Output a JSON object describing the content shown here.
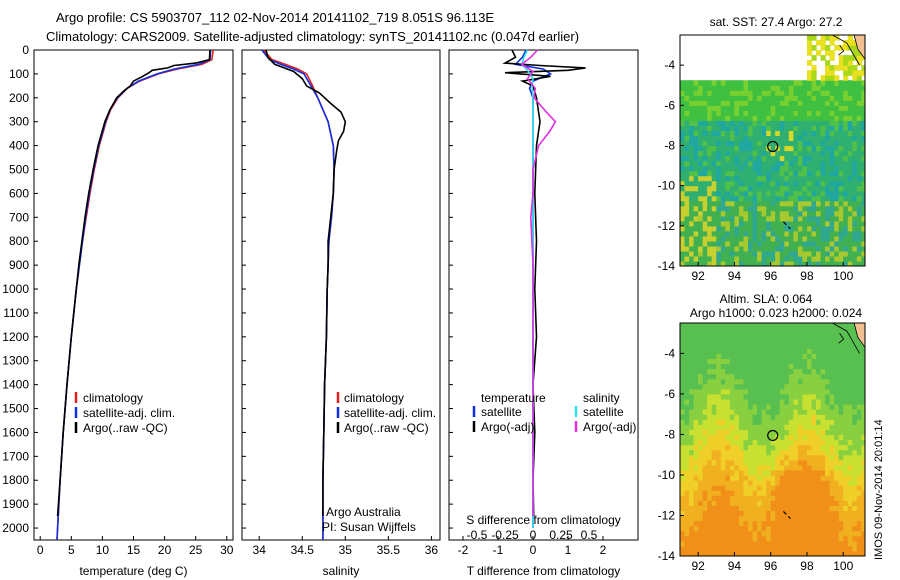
{
  "header": {
    "line1": "Argo profile: CS 5903707_112 02-Nov-2014 20141102_719 8.051S 96.113E",
    "line2": "Climatology: CARS2009. Satellite-adjusted climatology: synTS_20141102.nc (0.047d earlier)"
  },
  "depth_ticks": [
    "0",
    "100",
    "200",
    "300",
    "400",
    "500",
    "600",
    "700",
    "800",
    "900",
    "1000",
    "1100",
    "1200",
    "1300",
    "1400",
    "1500",
    "1600",
    "1700",
    "1800",
    "1900",
    "2000"
  ],
  "colors": {
    "clim": "#e02020",
    "sat": "#1030e0",
    "argo": "#000000",
    "sal_sat": "#30e0e8",
    "sal_argo": "#e030e0",
    "sst_bg": "#ffffff"
  },
  "chart_data": [
    {
      "id": "temperature",
      "type": "line",
      "xlabel": "temperature (deg C)",
      "xlim": [
        -1,
        31
      ],
      "xticks": [
        "0",
        "5",
        "10",
        "15",
        "20",
        "25",
        "30"
      ],
      "ylim": [
        0,
        2050
      ],
      "legend": [
        "climatology",
        "satellite-adj. clim.",
        "Argo(..raw -QC)"
      ],
      "series": [
        {
          "name": "climatology",
          "depth": [
            0,
            40,
            60,
            80,
            100,
            130,
            160,
            200,
            250,
            300,
            400,
            500,
            600,
            700,
            800,
            900,
            1000,
            1200,
            1400,
            1600,
            1800,
            2000,
            2050
          ],
          "values": [
            27.8,
            27.6,
            26.0,
            22.0,
            19.0,
            16.0,
            14.0,
            12.5,
            11.3,
            10.6,
            9.5,
            8.7,
            8.0,
            7.4,
            6.8,
            6.3,
            5.8,
            5.0,
            4.3,
            3.7,
            3.2,
            2.8,
            2.7
          ]
        },
        {
          "name": "satellite-adj. clim.",
          "depth": [
            0,
            40,
            60,
            80,
            100,
            130,
            160,
            200,
            250,
            300,
            400,
            500,
            600,
            700,
            800,
            900,
            1000,
            1200,
            1400,
            1600,
            1800,
            2000,
            2050
          ],
          "values": [
            27.4,
            27.3,
            25.5,
            21.5,
            18.8,
            15.8,
            14.0,
            12.4,
            11.2,
            10.5,
            9.4,
            8.6,
            7.9,
            7.3,
            6.8,
            6.3,
            5.8,
            5.0,
            4.3,
            3.7,
            3.2,
            2.8,
            2.7
          ]
        },
        {
          "name": "Argo(..raw -QC)",
          "depth": [
            0,
            40,
            55,
            65,
            75,
            85,
            95,
            110,
            130,
            150,
            170,
            200,
            250,
            300,
            400,
            500,
            600,
            700,
            800,
            900,
            1000,
            1200,
            1400,
            1600,
            1800,
            1950
          ],
          "values": [
            27.3,
            27.2,
            25.0,
            21.5,
            20.5,
            18.0,
            17.5,
            16.5,
            15.0,
            14.5,
            13.5,
            12.3,
            11.2,
            10.4,
            9.3,
            8.5,
            7.8,
            7.2,
            6.7,
            6.2,
            5.8,
            5.0,
            4.3,
            3.7,
            3.2,
            2.8
          ]
        }
      ]
    },
    {
      "id": "salinity",
      "type": "line",
      "xlabel": "salinity",
      "xlim": [
        33.8,
        36.1
      ],
      "xticks": [
        "34",
        "34.5",
        "35",
        "35.5",
        "36"
      ],
      "ylim": [
        0,
        2050
      ],
      "legend": [
        "climatology",
        "satellite-adj. clim.",
        "Argo(..raw -QC)"
      ],
      "annotation": [
        "Argo Australia",
        "PI: Susan Wijffels"
      ],
      "series": [
        {
          "name": "climatology",
          "depth": [
            0,
            40,
            60,
            80,
            100,
            150,
            200,
            300,
            400,
            500,
            600,
            700,
            800,
            900,
            1000,
            1200,
            1400,
            1600,
            1800,
            2000,
            2050
          ],
          "values": [
            34.05,
            34.15,
            34.3,
            34.45,
            34.55,
            34.62,
            34.68,
            34.8,
            34.86,
            34.87,
            34.86,
            34.84,
            34.81,
            34.8,
            34.79,
            34.78,
            34.76,
            34.75,
            34.74,
            34.74,
            34.74
          ]
        },
        {
          "name": "satellite-adj. clim.",
          "depth": [
            0,
            40,
            60,
            80,
            100,
            150,
            200,
            300,
            400,
            500,
            600,
            700,
            800,
            900,
            1000,
            1200,
            1400,
            1600,
            1800,
            2000,
            2050
          ],
          "values": [
            34.03,
            34.12,
            34.25,
            34.4,
            34.52,
            34.6,
            34.68,
            34.8,
            34.86,
            34.87,
            34.86,
            34.84,
            34.81,
            34.8,
            34.79,
            34.78,
            34.76,
            34.75,
            34.74,
            34.74,
            34.74
          ]
        },
        {
          "name": "Argo(..raw -QC)",
          "depth": [
            0,
            30,
            60,
            90,
            120,
            150,
            180,
            220,
            260,
            300,
            340,
            380,
            420,
            500,
            600,
            700,
            800,
            900,
            1000,
            1200,
            1400,
            1600,
            1800,
            1950
          ],
          "values": [
            34.08,
            34.1,
            34.18,
            34.4,
            34.5,
            34.55,
            34.7,
            34.82,
            34.95,
            35.0,
            34.98,
            34.92,
            34.9,
            34.87,
            34.86,
            34.83,
            34.8,
            34.8,
            34.79,
            34.78,
            34.76,
            34.75,
            34.74,
            34.74
          ]
        }
      ]
    },
    {
      "id": "differences",
      "type": "line",
      "xlabel_bottom": "T difference from climatology",
      "xlabel_top": "S difference from climatology",
      "xlim": [
        -2.4,
        3.0
      ],
      "xticks_bottom": [
        "-2",
        "-1",
        "0",
        "1",
        "2"
      ],
      "xticks_top": [
        "-0.5",
        "-0.25",
        "0",
        "0.25",
        "0.5"
      ],
      "ylim": [
        0,
        2050
      ],
      "legend_temperature": [
        "temperature",
        "satellite",
        "Argo(-adj)"
      ],
      "legend_salinity": [
        "salinity",
        "satellite",
        "Argo(-adj)"
      ],
      "series": [
        {
          "name": "T satellite",
          "depth": [
            0,
            30,
            60,
            80,
            100,
            130,
            160,
            200,
            300,
            500,
            800,
            1200,
            2000
          ],
          "values": [
            -0.2,
            -0.3,
            -0.5,
            0.3,
            0.5,
            0.0,
            -0.1,
            0.0,
            0.0,
            0.0,
            0.0,
            0.0,
            0.0
          ]
        },
        {
          "name": "T Argo(-adj)",
          "depth": [
            0,
            30,
            55,
            65,
            75,
            85,
            95,
            110,
            130,
            150,
            200,
            300,
            400,
            600,
            800,
            1000,
            1200,
            1400,
            1600,
            1800,
            1950
          ],
          "values": [
            -0.6,
            -0.5,
            -0.8,
            0.2,
            1.5,
            1.0,
            -0.8,
            0.5,
            -0.3,
            0.0,
            0.1,
            0.2,
            0.1,
            0.05,
            0.1,
            0.05,
            0.1,
            0.0,
            0.05,
            0.0,
            0.02
          ]
        },
        {
          "name": "S satellite",
          "depth": [
            0,
            30,
            60,
            90,
            120,
            150,
            200,
            400,
            800,
            1200,
            2000
          ],
          "values": [
            -0.05,
            -0.08,
            -0.1,
            -0.04,
            0.0,
            -0.01,
            0.0,
            0.0,
            0.0,
            0.0,
            0.0
          ]
        },
        {
          "name": "S Argo(-adj)",
          "depth": [
            0,
            30,
            60,
            90,
            120,
            160,
            200,
            260,
            300,
            340,
            400,
            500,
            600,
            700,
            800,
            900,
            1000,
            1200,
            1500,
            1800,
            1950
          ],
          "values": [
            0.04,
            -0.02,
            -0.1,
            0.0,
            -0.05,
            0.02,
            0.01,
            0.12,
            0.2,
            0.15,
            0.05,
            0.0,
            0.0,
            -0.02,
            -0.01,
            0.0,
            0.0,
            0.0,
            0.0,
            0.0,
            0.0
          ]
        }
      ]
    },
    {
      "id": "sst_map",
      "type": "heatmap",
      "title": "sat. SST: 27.4  Argo: 27.2",
      "xlim": [
        91,
        101.2
      ],
      "ylim": [
        -14,
        -2.5
      ],
      "xticks": [
        "92",
        "94",
        "96",
        "98",
        "100"
      ],
      "yticks": [
        "-4",
        "-6",
        "-8",
        "-10",
        "-12",
        "-14"
      ],
      "float_position": {
        "lon": 96.113,
        "lat": -8.051
      }
    },
    {
      "id": "sla_map",
      "type": "heatmap",
      "title": [
        "Altim. SLA: 0.064",
        "Argo h1000: 0.023 h2000: 0.024"
      ],
      "xlim": [
        91,
        101.2
      ],
      "ylim": [
        -14,
        -2.5
      ],
      "xticks": [
        "92",
        "94",
        "96",
        "98",
        "100"
      ],
      "yticks": [
        "-4",
        "-6",
        "-8",
        "-10",
        "-12",
        "-14"
      ],
      "float_position": {
        "lon": 96.113,
        "lat": -8.051
      }
    }
  ],
  "stamp": "IMOS 09-Nov-2014 20:01:14"
}
